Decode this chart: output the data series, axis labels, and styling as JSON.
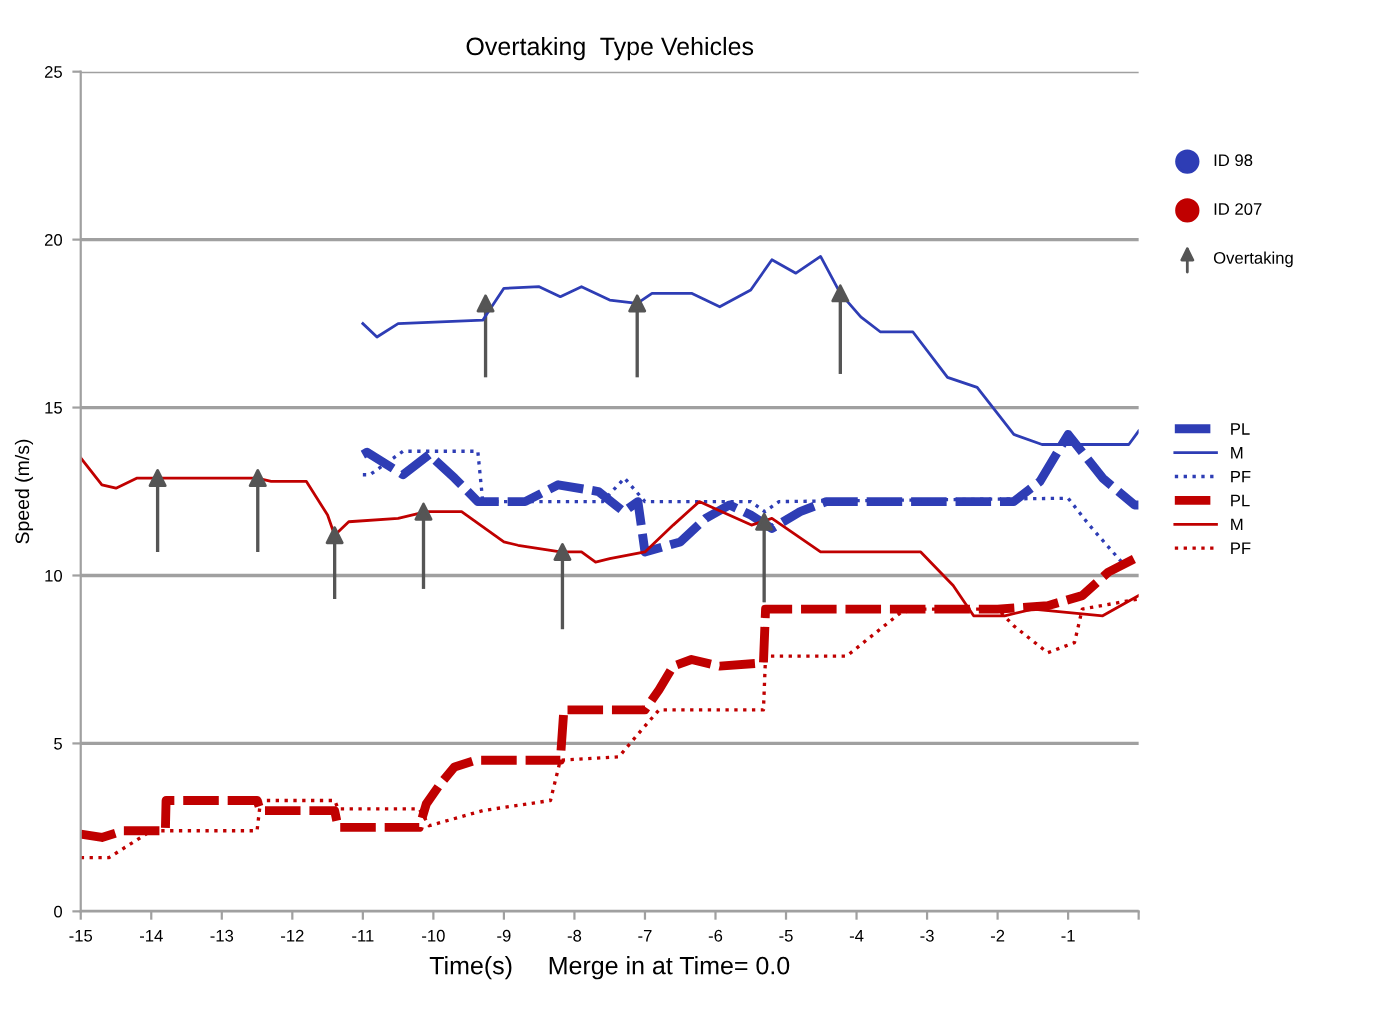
{
  "chart_data": {
    "type": "line",
    "title": "Overtaking  Type Vehicles",
    "xlabel": "Time(s)     Merge in at Time= 0.0",
    "ylabel": "Speed (m/s)",
    "xlim": [
      -15,
      0
    ],
    "xticks": [
      -15,
      -14,
      -13,
      -12,
      -11,
      -10,
      -9,
      -8,
      -7,
      -6,
      -5,
      -4,
      -3,
      -2,
      -1,
      {
        "value": 0,
        "label": null
      }
    ],
    "ylim": [
      0,
      25
    ],
    "yticks": [
      0,
      5,
      10,
      15,
      20,
      25
    ],
    "grid": "y",
    "legend": "right",
    "series": [
      {
        "name": "ID 98",
        "type": "scatter",
        "color": "#2e3db5"
      },
      {
        "name": "ID 207",
        "type": "scatter",
        "color": "#c00000"
      },
      {
        "name": "Overtaking",
        "type": "scatter",
        "marker": "triangle",
        "color": "#555555",
        "x": [
          -9.26,
          -7.11,
          -4.23,
          -13.91,
          -12.49,
          -11.4,
          -10.14,
          -8.17,
          -5.31
        ],
        "values": [
          18.1,
          18.1,
          18.4,
          12.9,
          12.9,
          11.2,
          11.9,
          10.7,
          11.6
        ],
        "errors": [
          [
            15.9,
            18.1
          ],
          [
            15.9,
            18.1
          ],
          [
            16.0,
            18.4
          ],
          [
            10.7,
            12.9
          ],
          [
            10.7,
            12.9
          ],
          [
            9.3,
            11.2
          ],
          [
            9.6,
            11.9
          ],
          [
            8.4,
            10.7
          ],
          [
            9.2,
            11.6
          ]
        ]
      },
      {
        "name": "PL",
        "color": "#2e3db5",
        "line_style": "dashed",
        "x": [
          -11,
          -10.94,
          -10.43,
          -10.06,
          -9.7,
          -9.37,
          -8.7,
          -8.23,
          -7.66,
          -7.3,
          -7.1,
          -7.0,
          -6.5,
          -6.14,
          -5.8,
          -5.5,
          -5.2,
          -4.8,
          -4.43,
          -3.0,
          -1.77,
          -1.4,
          -1.0,
          -0.51,
          -0.06,
          0
        ],
        "values": [
          13.6,
          13.67,
          13.0,
          13.6,
          12.9,
          12.2,
          12.2,
          12.7,
          12.5,
          11.9,
          12.2,
          10.7,
          11.0,
          11.7,
          12.1,
          11.8,
          11.4,
          11.9,
          12.2,
          12.2,
          12.2,
          12.8,
          14.2,
          12.9,
          12.1,
          12.1
        ]
      },
      {
        "name": "M",
        "color": "#2e3db5",
        "line_style": "solid",
        "x": [
          -11,
          -10.8,
          -10.5,
          -9.3,
          -9.0,
          -8.5,
          -8.2,
          -7.9,
          -7.5,
          -7.11,
          -6.9,
          -6.34,
          -5.94,
          -5.5,
          -5.2,
          -4.86,
          -4.51,
          -4.23,
          -3.94,
          -3.66,
          -3.2,
          -2.71,
          -2.29,
          -1.77,
          -1.37,
          -0.14,
          0
        ],
        "values": [
          17.5,
          17.1,
          17.5,
          17.6,
          18.55,
          18.6,
          18.3,
          18.6,
          18.2,
          18.1,
          18.4,
          18.4,
          18.0,
          18.5,
          19.4,
          19.0,
          19.5,
          18.4,
          17.7,
          17.25,
          17.25,
          15.9,
          15.6,
          14.2,
          13.9,
          13.9,
          14.3
        ]
      },
      {
        "name": "PF",
        "color": "#2e3db5",
        "line_style": "dotted",
        "x": [
          -11,
          -10.9,
          -10.43,
          -9.37,
          -9.3,
          -7.6,
          -7.29,
          -7.0,
          -5.5,
          -5.3,
          -5.1,
          -1.0,
          -0.7,
          -0.2
        ],
        "values": [
          13.0,
          13.0,
          13.7,
          13.7,
          12.2,
          12.2,
          12.9,
          12.2,
          12.2,
          11.9,
          12.2,
          12.3,
          11.5,
          10.3
        ]
      },
      {
        "name": "PL",
        "color": "#c00000",
        "line_style": "dashed",
        "x": [
          -15,
          -14.7,
          -14.4,
          -13.8,
          -13.79,
          -12.5,
          -12.45,
          -11.4,
          -11.35,
          -10.2,
          -10.1,
          -9.9,
          -9.7,
          -9.4,
          -8.2,
          -8.15,
          -7.0,
          -6.8,
          -6.6,
          -6.34,
          -5.94,
          -5.32,
          -5.29,
          -2.0,
          -1.29,
          -0.8,
          -0.43,
          -0.06,
          0
        ],
        "values": [
          2.3,
          2.2,
          2.4,
          2.4,
          3.3,
          3.3,
          3.0,
          3.0,
          2.5,
          2.5,
          3.2,
          3.8,
          4.3,
          4.5,
          4.5,
          6.0,
          6.0,
          6.6,
          7.3,
          7.5,
          7.3,
          7.4,
          9.0,
          9.0,
          9.1,
          9.4,
          10.1,
          10.5,
          10.6
        ]
      },
      {
        "name": "M",
        "color": "#c00000",
        "line_style": "solid",
        "x": [
          -15,
          -14.7,
          -14.5,
          -14.2,
          -12.5,
          -12.3,
          -11.8,
          -11.5,
          -11.4,
          -11.2,
          -10.5,
          -10.1,
          -9.6,
          -9.0,
          -8.8,
          -8.2,
          -7.9,
          -7.7,
          -7.5,
          -7.0,
          -6.6,
          -6.23,
          -5.49,
          -5.2,
          -4.51,
          -3.09,
          -2.63,
          -2.34,
          -1.9,
          -1.5,
          -0.51,
          0
        ],
        "values": [
          13.5,
          12.7,
          12.6,
          12.9,
          12.9,
          12.8,
          12.8,
          11.8,
          11.2,
          11.6,
          11.7,
          11.9,
          11.9,
          11.0,
          10.9,
          10.7,
          10.7,
          10.4,
          10.5,
          10.7,
          11.5,
          12.2,
          11.5,
          11.7,
          10.7,
          10.7,
          9.7,
          8.8,
          8.8,
          9.0,
          8.8,
          9.4
        ]
      },
      {
        "name": "PF",
        "color": "#c00000",
        "line_style": "dotted",
        "x": [
          -15,
          -14.6,
          -14.3,
          -14.0,
          -12.5,
          -12.45,
          -11.4,
          -11.35,
          -10.2,
          -10.06,
          -9.3,
          -8.34,
          -8.2,
          -7.37,
          -7.09,
          -6.8,
          -5.32,
          -5.29,
          -4.14,
          -3.37,
          -3.09,
          -2.0,
          -1.77,
          -1.29,
          -0.91,
          -0.8,
          0
        ],
        "values": [
          1.6,
          1.6,
          2.0,
          2.4,
          2.4,
          3.3,
          3.3,
          3.05,
          3.05,
          2.55,
          3.0,
          3.3,
          4.5,
          4.6,
          5.3,
          6.0,
          6.0,
          7.6,
          7.6,
          8.9,
          9.0,
          9.0,
          8.5,
          7.7,
          8.0,
          9.0,
          9.3
        ]
      }
    ]
  }
}
